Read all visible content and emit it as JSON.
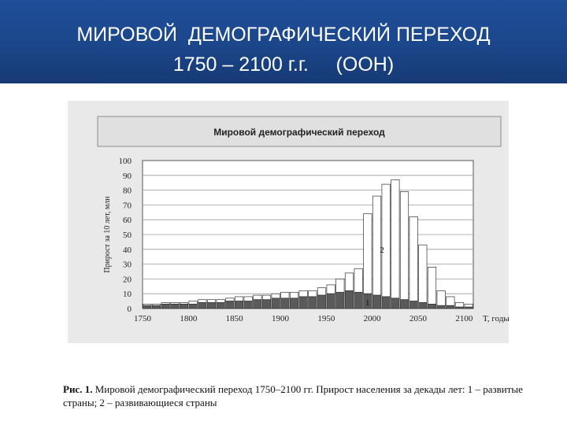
{
  "slide": {
    "title_line1": "МИРОВОЙ  ДЕМОГРАФИЧЕСКИЙ ПЕРЕХОД",
    "title_line2": "1750 – 2100 г.г.     (ООН)",
    "header_color": "#1b468a"
  },
  "caption": {
    "label": "Рис. 1.",
    "text": " Мировой демографический переход 1750–2100 гг. Прирост населения за декады лет: 1 – развитые страны; 2 – развивающиеся страны"
  },
  "chart_data": {
    "type": "bar",
    "title": "Мировой демографический переход",
    "ylabel": "Прирост за 10 лет, млн",
    "xlabel": "T, годы",
    "ylim": [
      0,
      100
    ],
    "yticks": [
      0,
      10,
      20,
      30,
      40,
      50,
      60,
      70,
      80,
      90,
      100
    ],
    "xticks": [
      "1750",
      "1800",
      "1850",
      "1900",
      "1950",
      "2000",
      "2050",
      "2100"
    ],
    "stacked": true,
    "series_labels": [
      "1",
      "2"
    ],
    "categories": [
      1750,
      1760,
      1770,
      1780,
      1790,
      1800,
      1810,
      1820,
      1830,
      1840,
      1850,
      1860,
      1870,
      1880,
      1890,
      1900,
      1910,
      1920,
      1930,
      1940,
      1950,
      1960,
      1970,
      1980,
      1990,
      2000,
      2010,
      2020,
      2030,
      2040,
      2050,
      2060,
      2070,
      2080,
      2090,
      2100
    ],
    "series": [
      {
        "values": [
          2,
          2,
          3,
          3,
          3,
          3,
          4,
          4,
          4,
          5,
          5,
          5,
          6,
          6,
          7,
          7,
          7,
          8,
          8,
          9,
          10,
          11,
          12,
          11,
          10,
          9,
          8,
          7,
          6,
          5,
          4,
          3,
          2,
          2,
          1,
          1
        ],
        "color": "#5a5a5a"
      },
      {
        "values": [
          1,
          1,
          1,
          1,
          1,
          2,
          2,
          2,
          2,
          2,
          3,
          3,
          3,
          3,
          3,
          4,
          4,
          4,
          4,
          5,
          6,
          9,
          12,
          16,
          54,
          67,
          76,
          80,
          73,
          57,
          39,
          25,
          10,
          6,
          3,
          2
        ],
        "color": "#ffffff"
      }
    ]
  }
}
